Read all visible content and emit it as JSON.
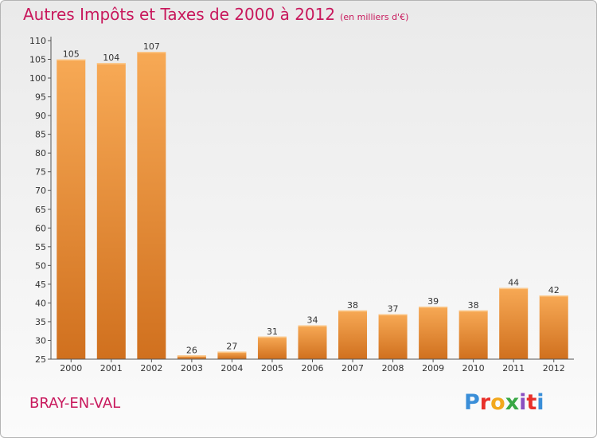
{
  "header": {
    "title": "Autres Impôts et Taxes de 2000 à 2012",
    "unit": "(en milliers d'€)"
  },
  "footer": {
    "commune": "BRAY-EN-VAL",
    "logo": "Proxiti"
  },
  "colors": {
    "title": "#c8185c",
    "bar_light": "#f7a955",
    "bar_dark": "#d0701e",
    "axis": "#555555"
  },
  "chart_data": {
    "type": "bar",
    "title": "Autres Impôts et Taxes de 2000 à 2012",
    "subtitle": "(en milliers d'€)",
    "xlabel": "",
    "ylabel": "",
    "categories": [
      "2000",
      "2001",
      "2002",
      "2003",
      "2004",
      "2005",
      "2006",
      "2007",
      "2008",
      "2009",
      "2010",
      "2011",
      "2012"
    ],
    "values": [
      105,
      104,
      107,
      26,
      27,
      31,
      34,
      38,
      37,
      39,
      38,
      44,
      42
    ],
    "ylim": [
      25,
      110
    ],
    "yticks": [
      25,
      30,
      35,
      40,
      45,
      50,
      55,
      60,
      65,
      70,
      75,
      80,
      85,
      90,
      95,
      100,
      105,
      110
    ],
    "data_labels": true,
    "grid": false,
    "legend": "none"
  }
}
